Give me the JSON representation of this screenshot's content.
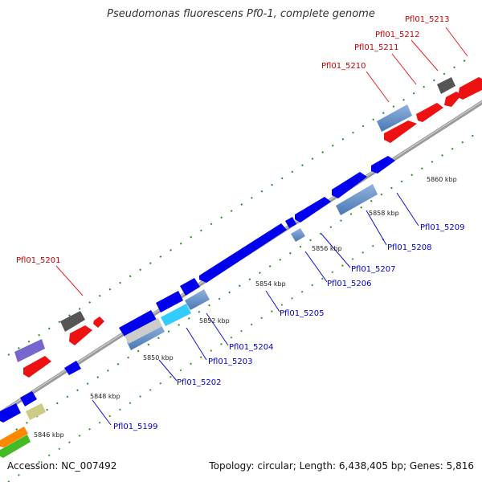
{
  "title": "Pseudomonas fluorescens Pf0-1, complete genome",
  "footer": {
    "accession": "Accession: NC_007492",
    "topology": "Topology: circular; Length: 6,438,405 bp; Genes: 5,816"
  },
  "colors": {
    "forward_gene": "#ff0000",
    "reverse_gene": "#0000ff",
    "backbone": "#999999",
    "tick": "#1f7a1f",
    "steelblue": "#5a8cc8",
    "gray": "#666666",
    "slate": "#7766cc",
    "cyan": "#33ccff",
    "khaki": "#cccc88",
    "orange": "#ff8800",
    "green": "#44bb22"
  },
  "ticks": [
    {
      "label": "5846 kbp"
    },
    {
      "label": "5848 kbp"
    },
    {
      "label": "5850 kbp"
    },
    {
      "label": "5852 kbp"
    },
    {
      "label": "5854 kbp"
    },
    {
      "label": "5856 kbp"
    },
    {
      "label": "5858 kbp"
    },
    {
      "label": "5860 kbp"
    }
  ],
  "gene_labels": [
    {
      "text": "Pfl01_5213",
      "strand": "forward"
    },
    {
      "text": "Pfl01_5212",
      "strand": "forward"
    },
    {
      "text": "Pfl01_5211",
      "strand": "forward"
    },
    {
      "text": "Pfl01_5210",
      "strand": "forward"
    },
    {
      "text": "Pfl01_5201",
      "strand": "forward"
    },
    {
      "text": "Pfl01_5209",
      "strand": "reverse"
    },
    {
      "text": "Pfl01_5208",
      "strand": "reverse"
    },
    {
      "text": "Pfl01_5207",
      "strand": "reverse"
    },
    {
      "text": "Pfl01_5206",
      "strand": "reverse"
    },
    {
      "text": "Pfl01_5205",
      "strand": "reverse"
    },
    {
      "text": "Pfl01_5204",
      "strand": "reverse"
    },
    {
      "text": "Pfl01_5203",
      "strand": "reverse"
    },
    {
      "text": "Pfl01_5202",
      "strand": "reverse"
    },
    {
      "text": "Pfl01_5199",
      "strand": "reverse"
    }
  ]
}
